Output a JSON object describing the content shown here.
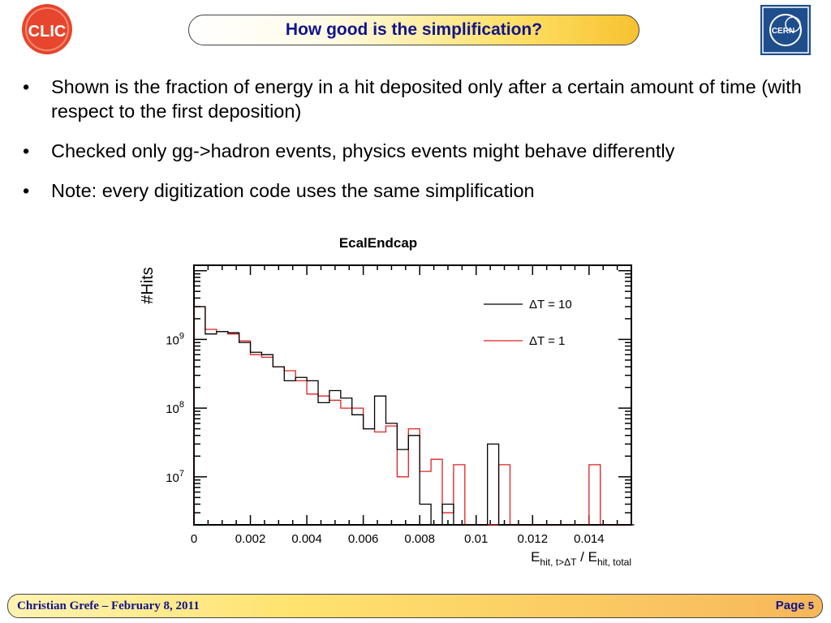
{
  "header": {
    "title": "How good is the simplification?",
    "clic_logo_text": "CLIC",
    "cern_logo_text": "CERN"
  },
  "bullets": [
    "Shown is the fraction of energy in a hit deposited only after a certain amount of time (with respect to the first deposition)",
    "Checked only gg->hadron events, physics events might behave differently",
    "Note: every digitization code uses the same simplification"
  ],
  "footer": {
    "author_date": "Christian Grefe –  February 8, 2011",
    "page_label": "Page",
    "page_number": "5"
  },
  "chart_data": {
    "type": "histogram",
    "title": "EcalEndcap",
    "xlabel": "E_{hit, t>ΔT} / E_{hit, total}",
    "ylabel": "#Hits",
    "y_scale": "log",
    "xlim": [
      0,
      0.0155
    ],
    "ylim": [
      2000000.0,
      12000000000.0
    ],
    "x_tick_labels": [
      "0",
      "0.002",
      "0.004",
      "0.006",
      "0.008",
      "0.01",
      "0.012",
      "0.014"
    ],
    "y_tick_labels": [
      "10^7",
      "10^8",
      "10^9"
    ],
    "bin_width": 0.0004,
    "legend_position": "top-right",
    "series": [
      {
        "name": "ΔT = 10",
        "color": "#000000",
        "values": [
          3000000000.0,
          1200000000.0,
          1300000000.0,
          1250000000.0,
          900000000.0,
          650000000.0,
          600000000.0,
          400000000.0,
          250000000.0,
          280000000.0,
          250000000.0,
          120000000.0,
          180000000.0,
          140000000.0,
          80000000.0,
          50000000.0,
          150000000.0,
          60000000.0,
          25000000.0,
          40000000.0,
          4000000.0,
          0,
          4000000.0,
          0,
          0,
          0,
          30000000.0,
          0,
          0,
          0,
          0,
          0,
          0,
          0,
          0,
          0,
          0,
          0,
          0
        ]
      },
      {
        "name": "ΔT = 1",
        "color": "#e02020",
        "values": [
          3000000000.0,
          1400000000.0,
          1300000000.0,
          1200000000.0,
          950000000.0,
          600000000.0,
          550000000.0,
          400000000.0,
          350000000.0,
          250000000.0,
          160000000.0,
          150000000.0,
          130000000.0,
          100000000.0,
          100000000.0,
          50000000.0,
          45000000.0,
          55000000.0,
          10000000.0,
          50000000.0,
          12000000.0,
          18000000.0,
          3000000.0,
          15000000.0,
          0,
          0,
          0,
          15000000.0,
          0,
          0,
          0,
          0,
          0,
          0,
          0,
          0,
          0,
          0,
          0
        ]
      },
      {
        "name": "",
        "color": "#e02020",
        "values_extra_bins": [
          {
            "bin": 35,
            "value": 15000000.0
          }
        ]
      }
    ]
  }
}
